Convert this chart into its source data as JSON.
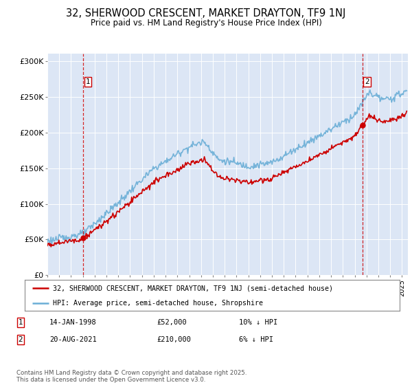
{
  "title": "32, SHERWOOD CRESCENT, MARKET DRAYTON, TF9 1NJ",
  "subtitle": "Price paid vs. HM Land Registry's House Price Index (HPI)",
  "background_color": "#dce6f5",
  "plot_bg_color": "#dce6f5",
  "hpi_color": "#6aaed6",
  "price_color": "#cc0000",
  "vline_color": "#cc0000",
  "sale1_date": 1998.04,
  "sale1_price": 52000,
  "sale1_label": "1",
  "sale2_date": 2021.64,
  "sale2_price": 210000,
  "sale2_label": "2",
  "xmin": 1995,
  "xmax": 2025.5,
  "ymin": 0,
  "ymax": 310000,
  "yticks": [
    0,
    50000,
    100000,
    150000,
    200000,
    250000,
    300000
  ],
  "ytick_labels": [
    "£0",
    "£50K",
    "£100K",
    "£150K",
    "£200K",
    "£250K",
    "£300K"
  ],
  "legend_line1": "32, SHERWOOD CRESCENT, MARKET DRAYTON, TF9 1NJ (semi-detached house)",
  "legend_line2": "HPI: Average price, semi-detached house, Shropshire",
  "annotation1_date": "14-JAN-1998",
  "annotation1_price": "£52,000",
  "annotation1_hpi": "10% ↓ HPI",
  "annotation2_date": "20-AUG-2021",
  "annotation2_price": "£210,000",
  "annotation2_hpi": "6% ↓ HPI",
  "footer": "Contains HM Land Registry data © Crown copyright and database right 2025.\nThis data is licensed under the Open Government Licence v3.0."
}
